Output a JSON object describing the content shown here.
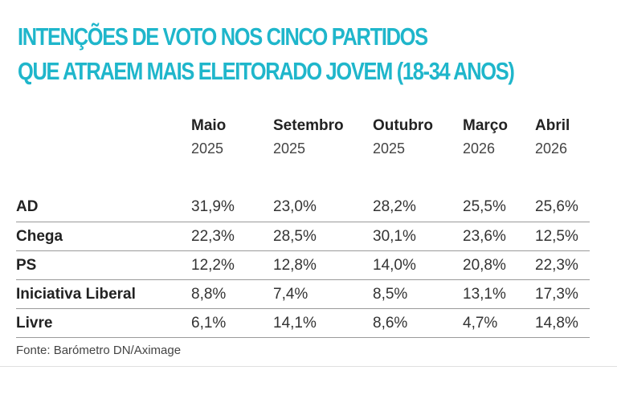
{
  "title": {
    "line1": "INTENÇÕES DE VOTO NOS CINCO PARTIDOS",
    "line2": "QUE ATRAEM MAIS ELEITORADO JOVEM (18-34 ANOS)"
  },
  "accent_color": "#1fb6cb",
  "source": "Fonte: Barómetro DN/Aximage",
  "chart_data": {
    "type": "table",
    "title": "INTENÇÕES DE VOTO NOS CINCO PARTIDOS QUE ATRAEM MAIS ELEITORADO JOVEM (18-34 ANOS)",
    "columns": [
      {
        "month": "Maio",
        "year": "2025"
      },
      {
        "month": "Setembro",
        "year": "2025"
      },
      {
        "month": "Outubro",
        "year": "2025"
      },
      {
        "month": "Março",
        "year": "2026"
      },
      {
        "month": "Abril",
        "year": "2026"
      }
    ],
    "rows": [
      {
        "party": "AD",
        "values": [
          "31,9%",
          "23,0%",
          "28,2%",
          "25,5%",
          "25,6%"
        ]
      },
      {
        "party": "Chega",
        "values": [
          "22,3%",
          "28,5%",
          "30,1%",
          "23,6%",
          "12,5%"
        ]
      },
      {
        "party": "PS",
        "values": [
          "12,2%",
          "12,8%",
          "14,0%",
          "20,8%",
          "22,3%"
        ]
      },
      {
        "party": "Iniciativa Liberal",
        "values": [
          "8,8%",
          "7,4%",
          "8,5%",
          "13,1%",
          "17,3%"
        ]
      },
      {
        "party": "Livre",
        "values": [
          "6,1%",
          "14,1%",
          "8,6%",
          "4,7%",
          "14,8%"
        ]
      }
    ]
  }
}
